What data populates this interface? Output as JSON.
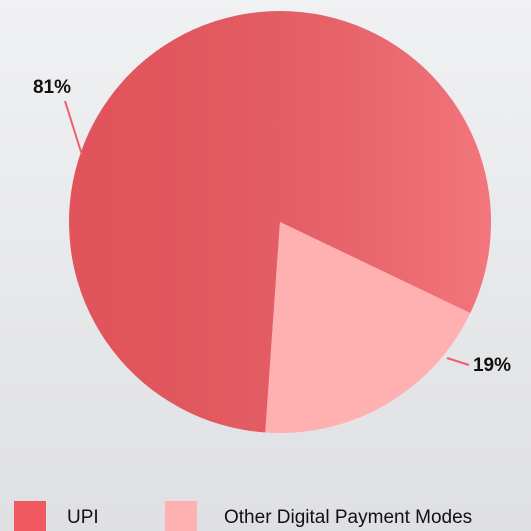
{
  "chart_data": {
    "type": "pie",
    "categories": [
      "UPI",
      "Other Digital Payment Modes"
    ],
    "values": [
      81,
      19
    ],
    "value_labels": [
      "81%",
      "19%"
    ],
    "colors": [
      "#f15961",
      "#ffb0b1"
    ]
  }
}
